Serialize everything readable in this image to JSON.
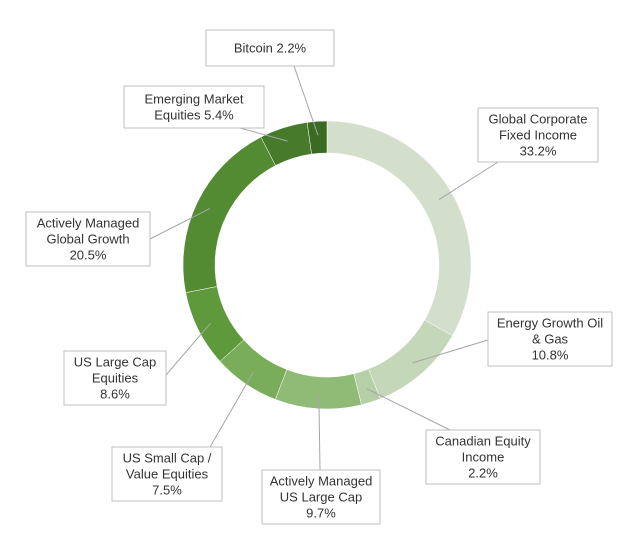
{
  "chart_data": {
    "type": "pie",
    "donut": true,
    "title": "",
    "slices": [
      {
        "label": "Global Corporate Fixed Income",
        "label_lines": [
          "Global Corporate",
          "Fixed Income",
          "33.2%"
        ],
        "value": 33.2,
        "color": "#d3dfcb"
      },
      {
        "label": "Energy Growth Oil & Gas",
        "label_lines": [
          "Energy Growth Oil",
          "& Gas",
          "10.8%"
        ],
        "value": 10.8,
        "color": "#c4d7b8"
      },
      {
        "label": "Canadian Equity Income",
        "label_lines": [
          "Canadian Equity",
          "Income",
          "2.2%"
        ],
        "value": 2.2,
        "color": "#b5cfa6"
      },
      {
        "label": "Actively Managed US Large Cap",
        "label_lines": [
          "Actively Managed",
          "US Large Cap",
          "9.7%"
        ],
        "value": 9.7,
        "color": "#8fbb77"
      },
      {
        "label": "US Small Cap / Value Equities",
        "label_lines": [
          "US Small Cap /",
          "Value Equities",
          "7.5%"
        ],
        "value": 7.5,
        "color": "#7aad5a"
      },
      {
        "label": "US Large Cap Equities",
        "label_lines": [
          "US Large Cap",
          "Equities",
          "8.6%"
        ],
        "value": 8.6,
        "color": "#5e9a3b"
      },
      {
        "label": "Actively Managed Global Growth",
        "label_lines": [
          "Actively Managed",
          "Global Growth",
          "20.5%"
        ],
        "value": 20.5,
        "color": "#538b32"
      },
      {
        "label": "Emerging Market Equities",
        "label_lines": [
          "Emerging Market",
          "Equities 5.4%"
        ],
        "value": 5.4,
        "color": "#487a2c"
      },
      {
        "label": "Bitcoin",
        "label_lines": [
          "Bitcoin 2.2%"
        ],
        "value": 2.2,
        "color": "#3b6a23"
      }
    ]
  }
}
